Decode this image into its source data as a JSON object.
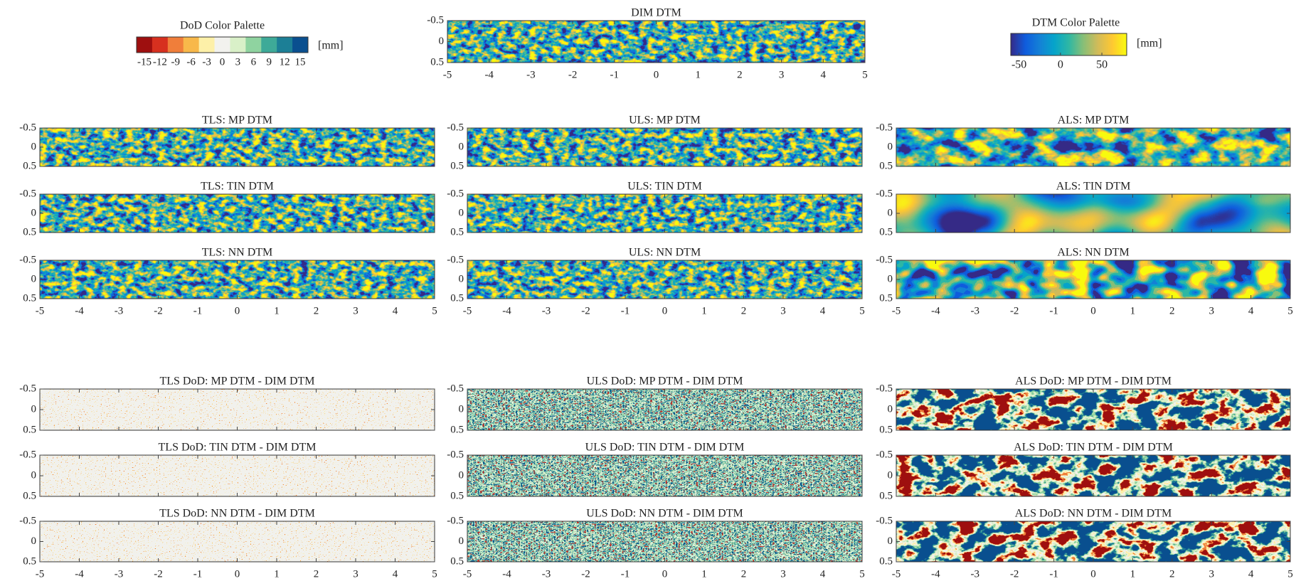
{
  "colorbars": [
    {
      "title": "DoD Color Palette",
      "unit": "[mm]",
      "ticks": [
        -15,
        -12,
        -9,
        -6,
        -3,
        0,
        3,
        6,
        9,
        12,
        15
      ],
      "colors": [
        "#9e0f0f",
        "#d7301f",
        "#f07e3a",
        "#f8b84a",
        "#fdf0a8",
        "#f2f2ee",
        "#d9f0c8",
        "#8fd3a0",
        "#3eaa98",
        "#1c7f96",
        "#0a4f8f"
      ]
    },
    {
      "title": "DTM Color Palette",
      "unit": "[mm]",
      "ticks": [
        -50,
        0,
        50
      ],
      "lim": [
        -60,
        80
      ],
      "colors": [
        "#352a87",
        "#0f5cdd",
        "#1481d6",
        "#06a4ca",
        "#2eb7a4",
        "#87bf77",
        "#d1bb59",
        "#fec832",
        "#f9fb0e"
      ]
    }
  ],
  "chart_data": [
    {
      "type": "heatmap",
      "title": "DIM DTM",
      "colormap": "dtm",
      "xlim": [
        -5,
        5
      ],
      "ylim": [
        0.5,
        -0.5
      ],
      "xticks": [
        -5,
        -4,
        -3,
        -2,
        -1,
        0,
        1,
        2,
        3,
        4,
        5
      ],
      "yticks": [
        -0.5,
        0,
        0.5
      ],
      "xtick_labels": true
    },
    {
      "type": "heatmap",
      "title": "TLS: MP DTM",
      "colormap": "dtm",
      "xlim": [
        -5,
        5
      ],
      "ylim": [
        0.5,
        -0.5
      ],
      "xticks": [
        -5,
        -4,
        -3,
        -2,
        -1,
        0,
        1,
        2,
        3,
        4,
        5
      ],
      "yticks": [
        -0.5,
        0,
        0.5
      ],
      "xtick_labels": false
    },
    {
      "type": "heatmap",
      "title": "ULS: MP DTM",
      "colormap": "dtm",
      "xlim": [
        -5,
        5
      ],
      "ylim": [
        0.5,
        -0.5
      ],
      "xticks": [
        -5,
        -4,
        -3,
        -2,
        -1,
        0,
        1,
        2,
        3,
        4,
        5
      ],
      "yticks": [
        -0.5,
        0,
        0.5
      ],
      "xtick_labels": false
    },
    {
      "type": "heatmap",
      "title": "ALS: MP DTM",
      "colormap": "dtm",
      "xlim": [
        -5,
        5
      ],
      "ylim": [
        0.5,
        -0.5
      ],
      "xticks": [
        -5,
        -4,
        -3,
        -2,
        -1,
        0,
        1,
        2,
        3,
        4,
        5
      ],
      "yticks": [
        -0.5,
        0,
        0.5
      ],
      "xtick_labels": false
    },
    {
      "type": "heatmap",
      "title": "TLS: TIN DTM",
      "colormap": "dtm",
      "xlim": [
        -5,
        5
      ],
      "ylim": [
        0.5,
        -0.5
      ],
      "xticks": [
        -5,
        -4,
        -3,
        -2,
        -1,
        0,
        1,
        2,
        3,
        4,
        5
      ],
      "yticks": [
        -0.5,
        0,
        0.5
      ],
      "xtick_labels": false
    },
    {
      "type": "heatmap",
      "title": "ULS: TIN DTM",
      "colormap": "dtm",
      "xlim": [
        -5,
        5
      ],
      "ylim": [
        0.5,
        -0.5
      ],
      "xticks": [
        -5,
        -4,
        -3,
        -2,
        -1,
        0,
        1,
        2,
        3,
        4,
        5
      ],
      "yticks": [
        -0.5,
        0,
        0.5
      ],
      "xtick_labels": false
    },
    {
      "type": "heatmap",
      "title": "ALS: TIN DTM",
      "colormap": "dtm",
      "xlim": [
        -5,
        5
      ],
      "ylim": [
        0.5,
        -0.5
      ],
      "xticks": [
        -5,
        -4,
        -3,
        -2,
        -1,
        0,
        1,
        2,
        3,
        4,
        5
      ],
      "yticks": [
        -0.5,
        0,
        0.5
      ],
      "xtick_labels": false
    },
    {
      "type": "heatmap",
      "title": "TLS: NN DTM",
      "colormap": "dtm",
      "xlim": [
        -5,
        5
      ],
      "ylim": [
        0.5,
        -0.5
      ],
      "xticks": [
        -5,
        -4,
        -3,
        -2,
        -1,
        0,
        1,
        2,
        3,
        4,
        5
      ],
      "yticks": [
        -0.5,
        0,
        0.5
      ],
      "xtick_labels": true
    },
    {
      "type": "heatmap",
      "title": "ULS: NN DTM",
      "colormap": "dtm",
      "xlim": [
        -5,
        5
      ],
      "ylim": [
        0.5,
        -0.5
      ],
      "xticks": [
        -5,
        -4,
        -3,
        -2,
        -1,
        0,
        1,
        2,
        3,
        4,
        5
      ],
      "yticks": [
        -0.5,
        0,
        0.5
      ],
      "xtick_labels": true
    },
    {
      "type": "heatmap",
      "title": "ALS: NN DTM",
      "colormap": "dtm",
      "xlim": [
        -5,
        5
      ],
      "ylim": [
        0.5,
        -0.5
      ],
      "xticks": [
        -5,
        -4,
        -3,
        -2,
        -1,
        0,
        1,
        2,
        3,
        4,
        5
      ],
      "yticks": [
        -0.5,
        0,
        0.5
      ],
      "xtick_labels": true
    },
    {
      "type": "heatmap",
      "title": "TLS DoD: MP DTM - DIM DTM",
      "colormap": "dod",
      "xlim": [
        -5,
        5
      ],
      "ylim": [
        0.5,
        -0.5
      ],
      "xticks": [
        -5,
        -4,
        -3,
        -2,
        -1,
        0,
        1,
        2,
        3,
        4,
        5
      ],
      "yticks": [
        -0.5,
        0,
        0.5
      ],
      "xtick_labels": false
    },
    {
      "type": "heatmap",
      "title": "ULS DoD: MP DTM - DIM DTM",
      "colormap": "dod",
      "xlim": [
        -5,
        5
      ],
      "ylim": [
        0.5,
        -0.5
      ],
      "xticks": [
        -5,
        -4,
        -3,
        -2,
        -1,
        0,
        1,
        2,
        3,
        4,
        5
      ],
      "yticks": [
        -0.5,
        0,
        0.5
      ],
      "xtick_labels": false
    },
    {
      "type": "heatmap",
      "title": "ALS DoD: MP DTM - DIM DTM",
      "colormap": "dod",
      "xlim": [
        -5,
        5
      ],
      "ylim": [
        0.5,
        -0.5
      ],
      "xticks": [
        -5,
        -4,
        -3,
        -2,
        -1,
        0,
        1,
        2,
        3,
        4,
        5
      ],
      "yticks": [
        -0.5,
        0,
        0.5
      ],
      "xtick_labels": false
    },
    {
      "type": "heatmap",
      "title": "TLS DoD: TIN DTM - DIM DTM",
      "colormap": "dod",
      "xlim": [
        -5,
        5
      ],
      "ylim": [
        0.5,
        -0.5
      ],
      "xticks": [
        -5,
        -4,
        -3,
        -2,
        -1,
        0,
        1,
        2,
        3,
        4,
        5
      ],
      "yticks": [
        -0.5,
        0,
        0.5
      ],
      "xtick_labels": false
    },
    {
      "type": "heatmap",
      "title": "ULS DoD: TIN DTM - DIM DTM",
      "colormap": "dod",
      "xlim": [
        -5,
        5
      ],
      "ylim": [
        0.5,
        -0.5
      ],
      "xticks": [
        -5,
        -4,
        -3,
        -2,
        -1,
        0,
        1,
        2,
        3,
        4,
        5
      ],
      "yticks": [
        -0.5,
        0,
        0.5
      ],
      "xtick_labels": false
    },
    {
      "type": "heatmap",
      "title": "ALS DoD: TIN DTM - DIM DTM",
      "colormap": "dod",
      "xlim": [
        -5,
        5
      ],
      "ylim": [
        0.5,
        -0.5
      ],
      "xticks": [
        -5,
        -4,
        -3,
        -2,
        -1,
        0,
        1,
        2,
        3,
        4,
        5
      ],
      "yticks": [
        -0.5,
        0,
        0.5
      ],
      "xtick_labels": false
    },
    {
      "type": "heatmap",
      "title": "TLS DoD: NN DTM - DIM DTM",
      "colormap": "dod",
      "xlim": [
        -5,
        5
      ],
      "ylim": [
        0.5,
        -0.5
      ],
      "xticks": [
        -5,
        -4,
        -3,
        -2,
        -1,
        0,
        1,
        2,
        3,
        4,
        5
      ],
      "yticks": [
        -0.5,
        0,
        0.5
      ],
      "xtick_labels": true
    },
    {
      "type": "heatmap",
      "title": "ULS DoD: NN DTM - DIM DTM",
      "colormap": "dod",
      "xlim": [
        -5,
        5
      ],
      "ylim": [
        0.5,
        -0.5
      ],
      "xticks": [
        -5,
        -4,
        -3,
        -2,
        -1,
        0,
        1,
        2,
        3,
        4,
        5
      ],
      "yticks": [
        -0.5,
        0,
        0.5
      ],
      "xtick_labels": true
    },
    {
      "type": "heatmap",
      "title": "ALS DoD: NN DTM - DIM DTM",
      "colormap": "dod",
      "xlim": [
        -5,
        5
      ],
      "ylim": [
        0.5,
        -0.5
      ],
      "xticks": [
        -5,
        -4,
        -3,
        -2,
        -1,
        0,
        1,
        2,
        3,
        4,
        5
      ],
      "yticks": [
        -0.5,
        0,
        0.5
      ],
      "xtick_labels": true
    }
  ]
}
